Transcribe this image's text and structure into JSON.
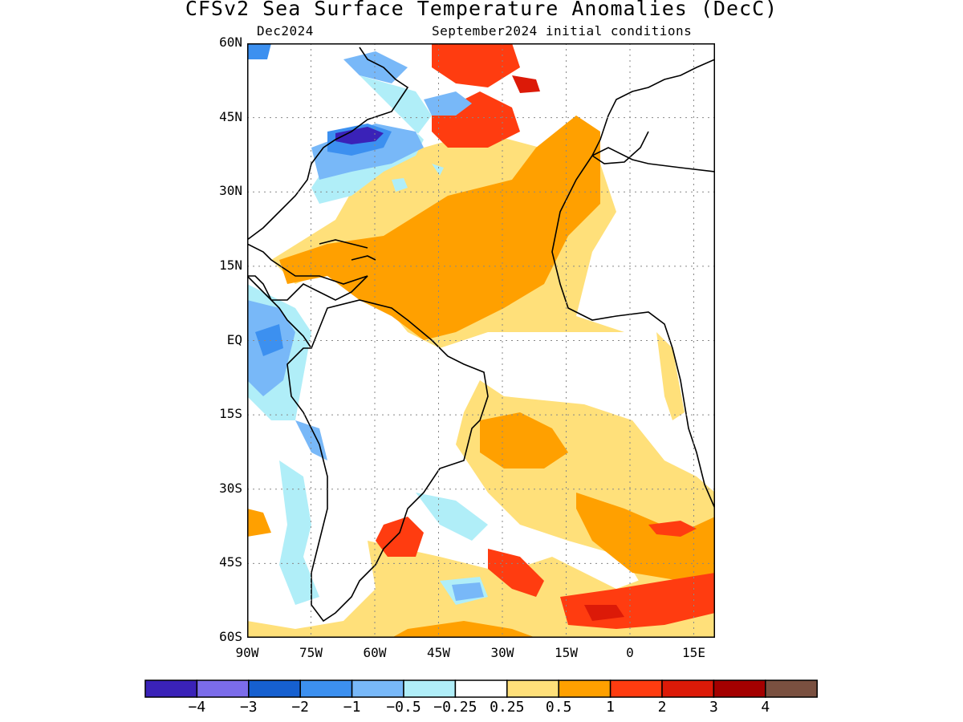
{
  "title": "CFSv2 Sea Surface Temperature Anomalies (DecC)",
  "subtitle_left": "Dec2024",
  "subtitle_right": "September2024 initial conditions",
  "map": {
    "lon_range": [
      -90,
      20
    ],
    "lat_range": [
      -60,
      60
    ],
    "lat_ticks": [
      {
        "lat": 60,
        "label": "60N"
      },
      {
        "lat": 45,
        "label": "45N"
      },
      {
        "lat": 30,
        "label": "30N"
      },
      {
        "lat": 15,
        "label": "15N"
      },
      {
        "lat": 0,
        "label": "EQ"
      },
      {
        "lat": -15,
        "label": "15S"
      },
      {
        "lat": -30,
        "label": "30S"
      },
      {
        "lat": -45,
        "label": "45S"
      },
      {
        "lat": -60,
        "label": "60S"
      }
    ],
    "lon_ticks": [
      {
        "lon": -90,
        "label": "90W"
      },
      {
        "lon": -75,
        "label": "75W"
      },
      {
        "lon": -60,
        "label": "60W"
      },
      {
        "lon": -45,
        "label": "45W"
      },
      {
        "lon": -30,
        "label": "30W"
      },
      {
        "lon": -15,
        "label": "15W"
      },
      {
        "lon": 0,
        "label": "0"
      },
      {
        "lon": 15,
        "label": "15E"
      }
    ],
    "grid": "dotted"
  },
  "legend": {
    "colors": [
      "#3a22b8",
      "#7b6cea",
      "#1660d0",
      "#3c90f0",
      "#78b8f8",
      "#b0eef8",
      "#ffffff",
      "#ffe07a",
      "#ffa000",
      "#ff3c10",
      "#dc1a08",
      "#a40000",
      "#7a5040"
    ],
    "labels": [
      "−4",
      "−3",
      "−2",
      "−1",
      "−0.5",
      "−0.25",
      "0.25",
      "0.5",
      "1",
      "2",
      "3",
      "4"
    ]
  }
}
